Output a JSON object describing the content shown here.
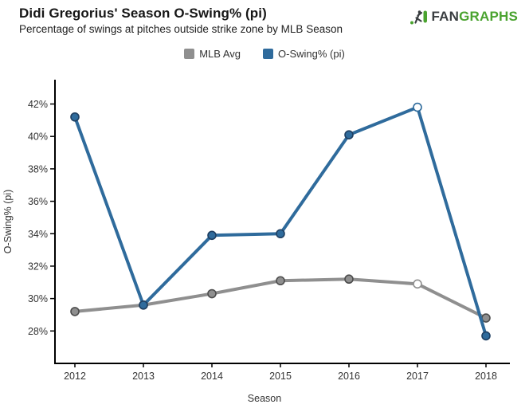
{
  "header": {
    "title": "Didi Gregorius' Season O-Swing% (pi)",
    "subtitle": "Percentage of swings at pitches outside strike zone by MLB Season"
  },
  "logo": {
    "fan": "FAN",
    "graphs": "GRAPHS",
    "green": "#4aa32f",
    "dark": "#3a3e41"
  },
  "chart_data": {
    "type": "line",
    "x": [
      2012,
      2013,
      2014,
      2015,
      2016,
      2017,
      2018
    ],
    "series": [
      {
        "name": "MLB Avg",
        "color": "#8f8f8f",
        "marker_stroke": "#4d4d4d",
        "values": [
          29.2,
          29.6,
          30.3,
          31.1,
          31.2,
          30.9,
          28.8
        ],
        "open_points": [
          2017
        ]
      },
      {
        "name": "O-Swing% (pi)",
        "color": "#2f6b9c",
        "marker_stroke": "#1f3f61",
        "values": [
          41.2,
          29.6,
          33.9,
          34.0,
          40.1,
          41.8,
          27.7
        ],
        "open_points": [
          2017
        ]
      }
    ],
    "title": "Didi Gregorius' Season O-Swing% (pi)",
    "xlabel": "Season",
    "ylabel": "O-Swing% (pi)",
    "ylim": [
      26.0,
      43.5
    ],
    "yticks": [
      28,
      30,
      32,
      34,
      36,
      38,
      40,
      42
    ],
    "ytick_suffix": "%",
    "grid": false,
    "legend_position": "top-center",
    "axis_color": "#000000"
  }
}
